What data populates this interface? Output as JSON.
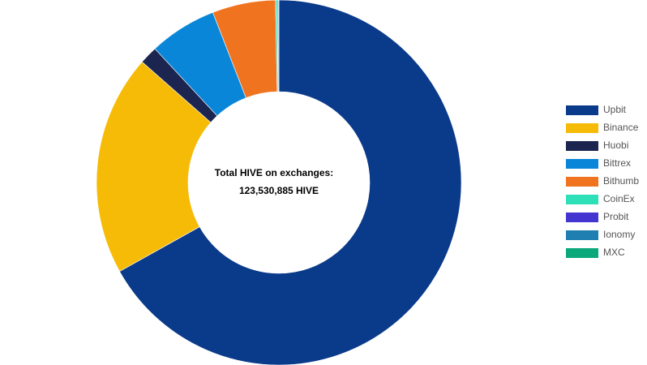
{
  "chart_data": {
    "type": "donut",
    "center_title": "Total HIVE on exchanges:",
    "center_value": "123,530,885 HIVE",
    "categories": [
      "Upbit",
      "Binance",
      "Huobi",
      "Bittrex",
      "Bithumb",
      "CoinEx",
      "Probit",
      "Ionomy",
      "MXC"
    ],
    "values": [
      66.9,
      19.6,
      1.6,
      6.0,
      5.6,
      0.15,
      0.02,
      0.1,
      0.03
    ],
    "colors": [
      "#0a3a8a",
      "#f6bb06",
      "#1b2550",
      "#0a86d8",
      "#f07420",
      "#2de0b8",
      "#4335d0",
      "#1f7fb0",
      "#0aa87a"
    ],
    "legend": "right"
  }
}
